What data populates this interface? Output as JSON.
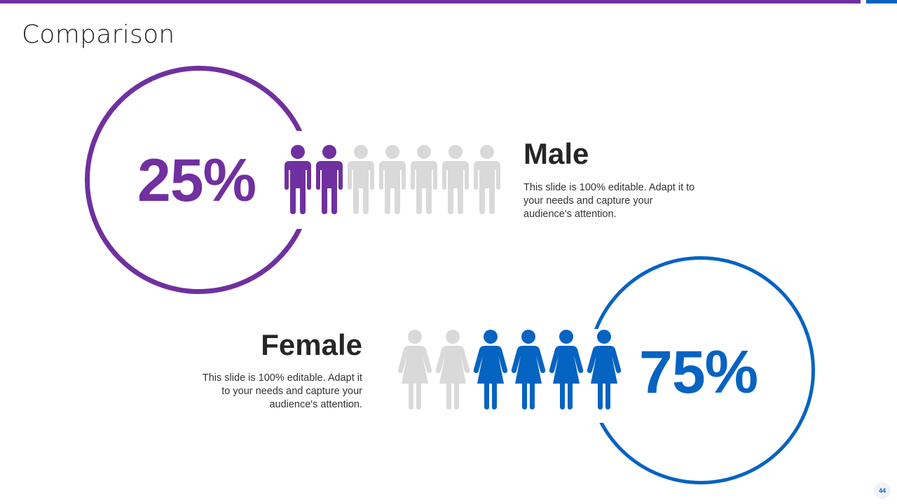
{
  "slide": {
    "title": "Comparison",
    "page_number": "44"
  },
  "colors": {
    "purple": "#7030a0",
    "blue": "#0563c1",
    "inactive": "#d9d9d9",
    "top_bar_left": "#7030a0",
    "top_bar_right": "#0563c1"
  },
  "male": {
    "heading": "Male",
    "percent": "25%",
    "description": "This slide is 100% editable. Adapt it to your needs and capture your audience's attention.",
    "icon": "male-person-icon",
    "icons_total": 7,
    "icons_highlighted": 2
  },
  "female": {
    "heading": "Female",
    "percent": "75%",
    "description": "This slide is 100% editable. Adapt it to your needs and capture your audience's attention.",
    "icon": "female-person-icon",
    "icons_total": 6,
    "icons_highlighted": 4
  }
}
